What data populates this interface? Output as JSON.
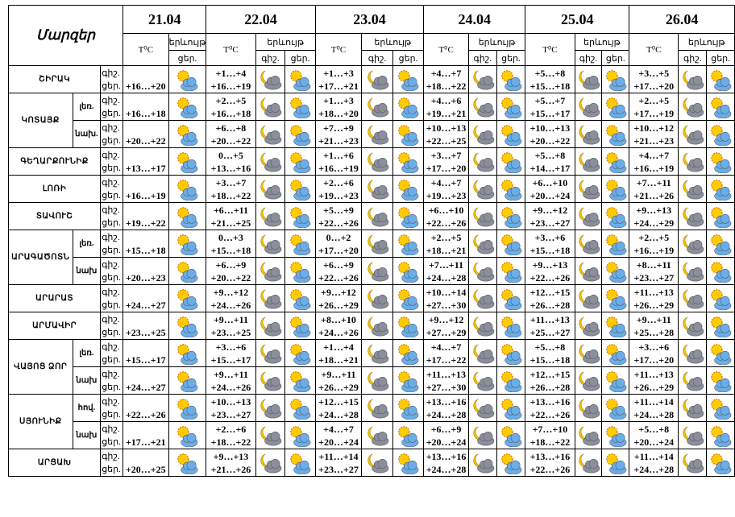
{
  "header": {
    "regions_title": "Մարզեր",
    "dates": [
      "21.04",
      "22.04",
      "23.04",
      "24.04",
      "25.04",
      "26.04"
    ],
    "temp_label": "T⁰C",
    "phenomena_label": "երևույթ",
    "night": "գիշ.",
    "day": "ցեր."
  },
  "regions": [
    {
      "name": "ՇԻՐԱԿ",
      "rows": [
        {
          "t21": "+16…+20",
          "days": [
            [
              "+1…+4",
              "+16…+19"
            ],
            [
              "+1…+3",
              "+17…+21"
            ],
            [
              "+4…+7",
              "+18…+22"
            ],
            [
              "+5…+8",
              "+15…+18"
            ],
            [
              "+3…+5",
              "+17…+20"
            ]
          ]
        }
      ]
    },
    {
      "name": "ԿՈՏԱՅՔ",
      "rows": [
        {
          "label": "լեռ.",
          "t21": "+16…+18",
          "days": [
            [
              "+2…+5",
              "+16…+18"
            ],
            [
              "+1…+3",
              "+18…+20"
            ],
            [
              "+4…+6",
              "+19…+21"
            ],
            [
              "+5…+7",
              "+15…+17"
            ],
            [
              "+2…+5",
              "+17…+19"
            ]
          ]
        },
        {
          "label": "նախ.",
          "t21": "+20…+22",
          "days": [
            [
              "+6…+8",
              "+20…+22"
            ],
            [
              "+7…+9",
              "+21…+23"
            ],
            [
              "+10…+13",
              "+22…+25"
            ],
            [
              "+10…+13",
              "+20…+22"
            ],
            [
              "+10…+12",
              "+21…+23"
            ]
          ]
        }
      ]
    },
    {
      "name": "ԳԵՂԱՐՔՈՒՆԻՔ",
      "rows": [
        {
          "t21": "+13…+17",
          "days": [
            [
              "0…+5",
              "+13…+16"
            ],
            [
              "+1…+6",
              "+16…+19"
            ],
            [
              "+3…+7",
              "+17…+20"
            ],
            [
              "+5…+8",
              "+14…+17"
            ],
            [
              "+4…+7",
              "+16…+19"
            ]
          ]
        }
      ]
    },
    {
      "name": "ԼՈՌԻ",
      "rows": [
        {
          "t21": "+16…+19",
          "days": [
            [
              "+3…+7",
              "+18…+22"
            ],
            [
              "+2…+6",
              "+19…+23"
            ],
            [
              "+4…+7",
              "+19…+23"
            ],
            [
              "+6…+10",
              "+20…+24"
            ],
            [
              "+7…+11",
              "+21…+26"
            ]
          ]
        }
      ]
    },
    {
      "name": "ՏԱՎՈՒՇ",
      "rows": [
        {
          "t21": "+19…+22",
          "days": [
            [
              "+6…+11",
              "+21…+25"
            ],
            [
              "+5…+9",
              "+22…+26"
            ],
            [
              "+6…+10",
              "+22…+26"
            ],
            [
              "+9…+12",
              "+23…+27"
            ],
            [
              "+9…+13",
              "+24…+29"
            ]
          ]
        }
      ]
    },
    {
      "name": "ԱՐԱԳԱԾՈՏՆ",
      "rows": [
        {
          "label": "լեռ.",
          "t21": "+15…+18",
          "days": [
            [
              "0…+3",
              "+15…+18"
            ],
            [
              "0…+2",
              "+17…+20"
            ],
            [
              "+2…+5",
              "+18…+21"
            ],
            [
              "+3…+6",
              "+15…+18"
            ],
            [
              "+2…+5",
              "+16…+19"
            ]
          ]
        },
        {
          "label": "նախ",
          "t21": "+20…+23",
          "days": [
            [
              "+6…+9",
              "+20…+22"
            ],
            [
              "+6…+9",
              "+22…+26"
            ],
            [
              "+7…+11",
              "+24…+28"
            ],
            [
              "+9…+13",
              "+22…+26"
            ],
            [
              "+8…+11",
              "+23…+27"
            ]
          ]
        }
      ]
    },
    {
      "name": "ԱՐԱՐԱՏ",
      "rows": [
        {
          "t21": "+24…+27",
          "days": [
            [
              "+9…+12",
              "+24…+26"
            ],
            [
              "+9…+12",
              "+26…+29"
            ],
            [
              "+10…+14",
              "+27…+30"
            ],
            [
              "+12…+15",
              "+26…+28"
            ],
            [
              "+11…+13",
              "+26…+29"
            ]
          ]
        }
      ]
    },
    {
      "name": "ԱՐՄԱՎԻՐ",
      "rows": [
        {
          "t21": "+23…+25",
          "days": [
            [
              "+9…+11",
              "+23…+25"
            ],
            [
              "+8…+10",
              "+24…+26"
            ],
            [
              "+9…+12",
              "+27…+29"
            ],
            [
              "+11…+13",
              "+25…+27"
            ],
            [
              "+9…+11",
              "+25…+28"
            ]
          ]
        }
      ]
    },
    {
      "name": "ՎԱՅՈՑ ՁՈՐ",
      "rows": [
        {
          "label": "լեռ.",
          "t21": "+15…+17",
          "days": [
            [
              "+3…+6",
              "+15…+17"
            ],
            [
              "+1…+4",
              "+18…+21"
            ],
            [
              "+4…+7",
              "+17…+22"
            ],
            [
              "+5…+8",
              "+15…+18"
            ],
            [
              "+3…+6",
              "+17…+20"
            ]
          ]
        },
        {
          "label": "նախ",
          "t21": "+24…+27",
          "days": [
            [
              "+9…+11",
              "+24…+26"
            ],
            [
              "+9…+11",
              "+26…+29"
            ],
            [
              "+11…+13",
              "+27…+30"
            ],
            [
              "+12…+15",
              "+26…+28"
            ],
            [
              "+11…+13",
              "+26…+29"
            ]
          ]
        }
      ]
    },
    {
      "name": "ՍՅՈՒՆԻՔ",
      "rows": [
        {
          "label": "հով.",
          "t21": "+22…+26",
          "days": [
            [
              "+10…+13",
              "+23…+27"
            ],
            [
              "+12…+15",
              "+24…+28"
            ],
            [
              "+13…+16",
              "+24…+28"
            ],
            [
              "+13…+16",
              "+22…+26"
            ],
            [
              "+11…+14",
              "+24…+28"
            ]
          ]
        },
        {
          "label": "նախ",
          "t21": "+17…+21",
          "days": [
            [
              "+2…+6",
              "+18…+22"
            ],
            [
              "+4…+7",
              "+20…+24"
            ],
            [
              "+6…+9",
              "+20…+24"
            ],
            [
              "+7…+10",
              "+18…+22"
            ],
            [
              "+5…+8",
              "+20…+24"
            ]
          ]
        }
      ]
    },
    {
      "name": "ԱՐՑԱԽ",
      "rows": [
        {
          "t21": "+20…+25",
          "days": [
            [
              "+9…+13",
              "+21…+26"
            ],
            [
              "+11…+14",
              "+23…+27"
            ],
            [
              "+13…+16",
              "+24…+28"
            ],
            [
              "+13…+16",
              "+22…+26"
            ],
            [
              "+11…+14",
              "+24…+28"
            ]
          ]
        }
      ]
    }
  ]
}
